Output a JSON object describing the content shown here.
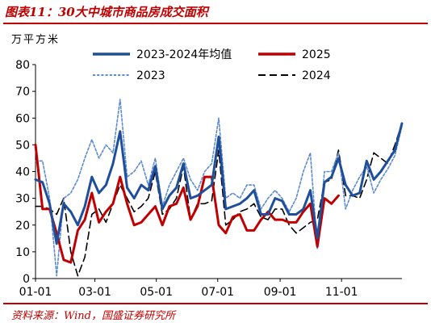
{
  "figure_title": "图表11：30大中城市商品房成交面积",
  "source": "资料来源：Wind，国盛证券研究所",
  "chart_data": {
    "type": "line",
    "ylabel": "万平方米",
    "xlabel": "",
    "ylim": [
      0,
      80
    ],
    "yticks": [
      "0",
      "10",
      "20",
      "30",
      "40",
      "50",
      "60",
      "70",
      "80"
    ],
    "xticks": [
      "01-01",
      "03-01",
      "05-01",
      "07-01",
      "09-01",
      "11-01"
    ],
    "x_start": "01-01",
    "x_end": "12-31",
    "grid": false,
    "legend_placement": "top",
    "series": [
      {
        "name": "2023-2024年均值",
        "color": "#1f4e9b",
        "style": "solid",
        "x": [
          "01-01",
          "01-08",
          "01-15",
          "01-22",
          "01-29",
          "02-05",
          "02-12",
          "02-19",
          "02-26",
          "03-05",
          "03-12",
          "03-19",
          "03-26",
          "04-02",
          "04-09",
          "04-16",
          "04-23",
          "04-30",
          "05-07",
          "05-14",
          "05-21",
          "05-28",
          "06-04",
          "06-11",
          "06-18",
          "06-25",
          "07-02",
          "07-09",
          "07-16",
          "07-23",
          "07-30",
          "08-06",
          "08-13",
          "08-20",
          "08-27",
          "09-03",
          "09-10",
          "09-17",
          "09-24",
          "10-01",
          "10-08",
          "10-15",
          "10-22",
          "10-29",
          "11-05",
          "11-12",
          "11-19",
          "11-26",
          "12-03",
          "12-10",
          "12-17",
          "12-24",
          "12-31"
        ],
        "values": [
          37,
          36,
          28,
          13,
          28,
          25,
          20,
          27,
          38,
          32,
          35,
          43,
          55,
          34,
          30,
          35,
          33,
          42,
          26,
          31,
          34,
          43,
          30,
          31,
          33,
          35,
          53,
          26,
          27,
          28,
          30,
          33,
          24,
          24,
          30,
          29,
          24,
          24,
          26,
          33,
          15,
          36,
          38,
          45,
          35,
          31,
          32,
          44,
          37,
          40,
          44,
          48,
          58
        ]
      },
      {
        "name": "2025",
        "color": "#c00000",
        "style": "solid",
        "x": [
          "01-01",
          "01-08",
          "01-15",
          "01-22",
          "01-29",
          "02-05",
          "02-12",
          "02-19",
          "02-26",
          "03-05",
          "03-12",
          "03-19",
          "03-26",
          "04-02",
          "04-09",
          "04-16",
          "04-23",
          "04-30",
          "05-07",
          "05-14",
          "05-21",
          "05-28",
          "06-04",
          "06-11",
          "06-18",
          "06-25",
          "07-02",
          "07-09",
          "07-16",
          "07-23",
          "07-30",
          "08-06",
          "08-13",
          "08-20",
          "08-27",
          "09-03",
          "09-10",
          "09-17",
          "09-24",
          "10-01",
          "10-08",
          "10-15",
          "10-22",
          "10-29"
        ],
        "values": [
          50,
          26,
          26,
          17,
          7,
          6,
          18,
          22,
          32,
          21,
          25,
          28,
          38,
          28,
          20,
          21,
          24,
          27,
          20,
          27,
          28,
          34,
          22,
          27,
          38,
          38,
          20,
          17,
          23,
          24,
          18,
          18,
          22,
          25,
          22,
          22,
          21,
          21,
          25,
          28,
          12,
          30,
          28,
          31
        ]
      },
      {
        "name": "2023",
        "color": "#5b8ad0",
        "style": "dotted",
        "x": [
          "01-01",
          "01-08",
          "01-15",
          "01-22",
          "01-29",
          "02-05",
          "02-12",
          "02-19",
          "02-26",
          "03-05",
          "03-12",
          "03-19",
          "03-26",
          "04-02",
          "04-09",
          "04-16",
          "04-23",
          "04-30",
          "05-07",
          "05-14",
          "05-21",
          "05-28",
          "06-04",
          "06-11",
          "06-18",
          "06-25",
          "07-02",
          "07-09",
          "07-16",
          "07-23",
          "07-30",
          "08-06",
          "08-13",
          "08-20",
          "08-27",
          "09-03",
          "09-10",
          "09-17",
          "09-24",
          "10-01",
          "10-08",
          "10-15",
          "10-22",
          "10-29",
          "11-05",
          "11-12",
          "11-19",
          "11-26",
          "12-03",
          "12-10",
          "12-17",
          "12-24",
          "12-31"
        ],
        "values": [
          44,
          44,
          30,
          1,
          30,
          32,
          37,
          45,
          52,
          45,
          50,
          47,
          67,
          38,
          40,
          44,
          35,
          45,
          27,
          35,
          40,
          45,
          37,
          33,
          40,
          43,
          60,
          30,
          32,
          30,
          35,
          35,
          26,
          30,
          33,
          30,
          25,
          30,
          40,
          47,
          11,
          40,
          40,
          47,
          26,
          33,
          38,
          42,
          32,
          37,
          41,
          46,
          57
        ]
      },
      {
        "name": "2024",
        "color": "#000000",
        "style": "dashed",
        "x": [
          "01-01",
          "01-08",
          "01-15",
          "01-22",
          "01-29",
          "02-05",
          "02-12",
          "02-19",
          "02-26",
          "03-05",
          "03-12",
          "03-19",
          "03-26",
          "04-02",
          "04-09",
          "04-16",
          "04-23",
          "04-30",
          "05-07",
          "05-14",
          "05-21",
          "05-28",
          "06-04",
          "06-11",
          "06-18",
          "06-25",
          "07-02",
          "07-09",
          "07-16",
          "07-23",
          "07-30",
          "08-06",
          "08-13",
          "08-20",
          "08-27",
          "09-03",
          "09-10",
          "09-17",
          "09-24",
          "10-01",
          "10-08",
          "10-15",
          "10-22",
          "10-29",
          "11-05",
          "11-12",
          "11-19",
          "11-26",
          "12-03",
          "12-10",
          "12-17",
          "12-24",
          "12-31"
        ],
        "values": [
          27,
          27,
          26,
          24,
          30,
          10,
          1,
          8,
          24,
          26,
          21,
          28,
          35,
          30,
          25,
          27,
          30,
          40,
          24,
          26,
          30,
          42,
          22,
          28,
          28,
          29,
          48,
          20,
          22,
          25,
          26,
          28,
          23,
          22,
          26,
          26,
          20,
          17,
          19,
          21,
          22,
          36,
          37,
          48,
          31,
          31,
          30,
          37,
          47,
          45,
          43,
          50,
          58
        ]
      }
    ]
  }
}
